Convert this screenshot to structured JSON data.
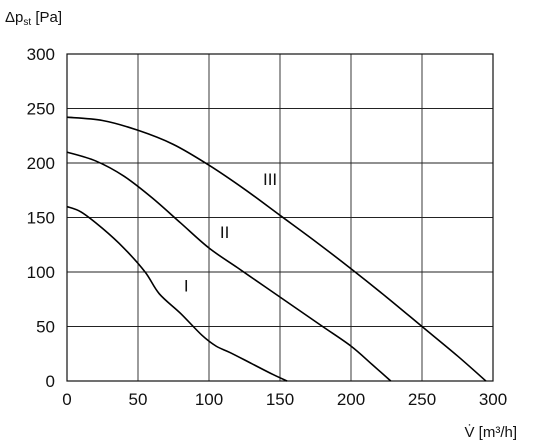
{
  "chart_data": {
    "type": "line",
    "ylabel": "Δp",
    "ylabel_sub": "st",
    "ylabel_unit": " [Pa]",
    "xlabel": "V̇ [m³/h]",
    "xlim": [
      0,
      300
    ],
    "ylim": [
      0,
      300
    ],
    "x_ticks": [
      0,
      50,
      100,
      150,
      200,
      250,
      300
    ],
    "y_ticks": [
      0,
      50,
      100,
      150,
      200,
      250,
      300
    ],
    "x_tick_labels": [
      "0",
      "50",
      "100",
      "150",
      "200",
      "250",
      "300"
    ],
    "y_tick_labels": [
      "0",
      "50",
      "100",
      "150",
      "200",
      "250",
      "300"
    ],
    "grid": true,
    "series": [
      {
        "name": "I",
        "x": [
          0,
          10,
          25,
          40,
          55,
          65,
          80,
          95,
          105,
          115,
          130,
          145,
          155
        ],
        "y": [
          160,
          155,
          140,
          122,
          100,
          80,
          62,
          42,
          32,
          26,
          16,
          6,
          0
        ]
      },
      {
        "name": "II",
        "x": [
          0,
          20,
          40,
          60,
          80,
          100,
          120,
          140,
          160,
          180,
          200,
          215,
          228
        ],
        "y": [
          210,
          202,
          188,
          168,
          145,
          122,
          104,
          86,
          68,
          50,
          32,
          15,
          0
        ]
      },
      {
        "name": "III",
        "x": [
          0,
          25,
          50,
          75,
          100,
          125,
          150,
          175,
          200,
          225,
          250,
          275,
          295
        ],
        "y": [
          242,
          239,
          230,
          217,
          198,
          176,
          152,
          128,
          103,
          77,
          50,
          23,
          0
        ]
      }
    ],
    "curve_labels": [
      {
        "text": "I",
        "x": 84,
        "y": 82
      },
      {
        "text": "II",
        "x": 111,
        "y": 131
      },
      {
        "text": "III",
        "x": 143,
        "y": 180
      }
    ]
  }
}
